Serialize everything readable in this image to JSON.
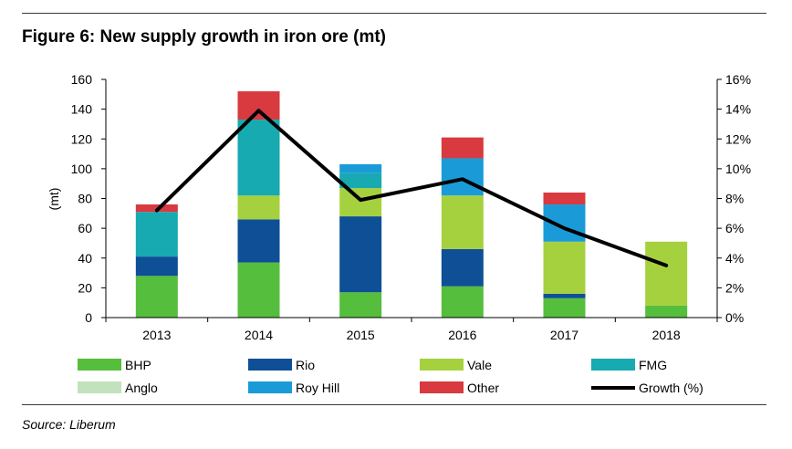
{
  "title": "Figure 6: New supply growth in iron ore (mt)",
  "source": "Source: Liberum",
  "chart_data": {
    "type": "bar",
    "stacked": true,
    "categories": [
      "2013",
      "2014",
      "2015",
      "2016",
      "2017",
      "2018"
    ],
    "ylabel": "(mt)",
    "ylim": [
      0,
      160
    ],
    "yticks": [
      "0",
      "20",
      "40",
      "60",
      "80",
      "100",
      "120",
      "140",
      "160"
    ],
    "y2lim": [
      0,
      16
    ],
    "y2ticks": [
      "0%",
      "2%",
      "4%",
      "6%",
      "8%",
      "10%",
      "12%",
      "14%",
      "16%"
    ],
    "grid": false,
    "legend_position": "bottom",
    "series": [
      {
        "name": "BHP",
        "color": "#55be3c",
        "values": [
          28,
          37,
          17,
          21,
          13,
          8
        ]
      },
      {
        "name": "Rio",
        "color": "#0e4f96",
        "values": [
          13,
          29,
          51,
          25,
          3,
          0
        ]
      },
      {
        "name": "Vale",
        "color": "#a6d13e",
        "values": [
          0,
          16,
          19,
          36,
          35,
          43
        ]
      },
      {
        "name": "FMG",
        "color": "#17aab0",
        "values": [
          30,
          51,
          10,
          0,
          0,
          0
        ]
      },
      {
        "name": "Anglo",
        "color": "#c2e2bd",
        "values": [
          0,
          0,
          0,
          0,
          0,
          0
        ]
      },
      {
        "name": "Roy Hill",
        "color": "#1a9bd8",
        "values": [
          0,
          0,
          6,
          25,
          25,
          0
        ]
      },
      {
        "name": "Other",
        "color": "#d83a3f",
        "values": [
          5,
          19,
          0,
          14,
          8,
          0
        ]
      }
    ],
    "line_series": {
      "name": "Growth (%)",
      "color": "#000000",
      "axis": "right",
      "values": [
        7.2,
        13.9,
        7.9,
        9.3,
        6.0,
        3.5
      ]
    }
  }
}
